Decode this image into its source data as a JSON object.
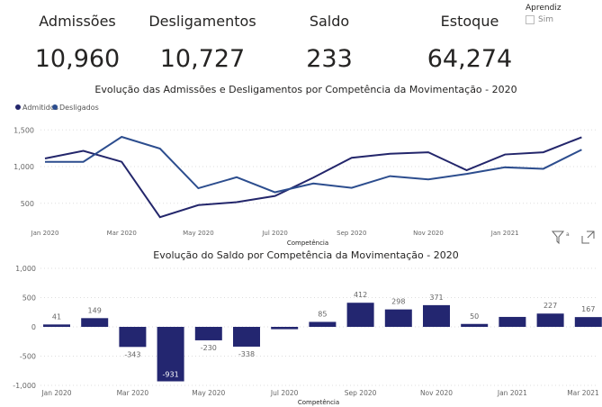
{
  "kpis": [
    {
      "label": "Admissões",
      "value": "10,960"
    },
    {
      "label": "Desligamentos",
      "value": "10,727"
    },
    {
      "label": "Saldo",
      "value": "233"
    },
    {
      "label": "Estoque",
      "value": "64,274"
    }
  ],
  "slicer": {
    "title": "Aprendiz",
    "option": "Sim"
  },
  "chart_data": [
    {
      "type": "line",
      "title": "Evolução das Admissões e Desligamentos por Competência da Movimentação - 2020",
      "xlabel": "Competência",
      "ylabel": "",
      "categories": [
        "Jan 2020",
        "Feb 2020",
        "Mar 2020",
        "Apr 2020",
        "May 2020",
        "Jun 2020",
        "Jul 2020",
        "Aug 2020",
        "Sep 2020",
        "Oct 2020",
        "Nov 2020",
        "Dec 2020",
        "Jan 2021",
        "Feb 2021",
        "Mar 2021"
      ],
      "xticks": [
        "Jan 2020",
        "Mar 2020",
        "May 2020",
        "Jul 2020",
        "Sep 2020",
        "Nov 2020",
        "Jan 2021"
      ],
      "yticks": [
        "500",
        "1,000",
        "1,500"
      ],
      "ylim": [
        200,
        1600
      ],
      "legend": "top-left",
      "series": [
        {
          "name": "Admitidos",
          "color": "#23266b",
          "values": [
            1110,
            1215,
            1065,
            310,
            475,
            515,
            600,
            850,
            1120,
            1175,
            1195,
            950,
            1165,
            1195,
            1400
          ]
        },
        {
          "name": "Desligados",
          "color": "#2c4d8e",
          "values": [
            1065,
            1065,
            1405,
            1245,
            705,
            855,
            650,
            770,
            710,
            870,
            825,
            900,
            990,
            970,
            1230
          ]
        }
      ]
    },
    {
      "type": "bar",
      "title": "Evolução do Saldo por Competência da Movimentação - 2020",
      "xlabel": "Competência",
      "ylabel": "",
      "categories": [
        "Jan 2020",
        "Feb 2020",
        "Mar 2020",
        "Apr 2020",
        "May 2020",
        "Jun 2020",
        "Jul 2020",
        "Aug 2020",
        "Sep 2020",
        "Oct 2020",
        "Nov 2020",
        "Dec 2020",
        "Jan 2021",
        "Feb 2021",
        "Mar 2021"
      ],
      "xticks": [
        "Jan 2020",
        "Mar 2020",
        "May 2020",
        "Jul 2020",
        "Sep 2020",
        "Nov 2020",
        "Jan 2021",
        "Mar 2021"
      ],
      "yticks": [
        "-1,000",
        "-500",
        "0",
        "500",
        "1,000"
      ],
      "ylim": [
        -1000,
        1000
      ],
      "color": "#232670",
      "values": [
        41,
        149,
        -343,
        -931,
        -230,
        -338,
        -40,
        85,
        412,
        298,
        371,
        50,
        170,
        227,
        167
      ],
      "labels": [
        "41",
        "149",
        "-343",
        "-931",
        "-230",
        "-338",
        "",
        "85",
        "412",
        "298",
        "371",
        "50",
        "",
        "227",
        "167"
      ]
    }
  ],
  "icons": [
    "filter-icon",
    "focus-mode-icon"
  ]
}
